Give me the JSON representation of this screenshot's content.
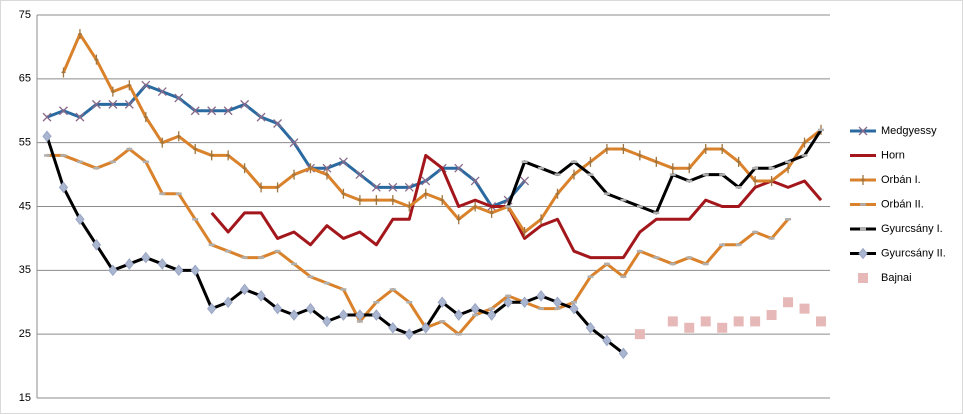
{
  "chart_data": {
    "type": "line",
    "categories": [
      null,
      null,
      null,
      null,
      null,
      null,
      null,
      null,
      null,
      null,
      null,
      null,
      null,
      null,
      null,
      null,
      null,
      null,
      null,
      null,
      null,
      null,
      null,
      null,
      null,
      null,
      null,
      null,
      null,
      null,
      null,
      null,
      null,
      null,
      null,
      null,
      null,
      null,
      null,
      null,
      null,
      null,
      null,
      null,
      null,
      null,
      null,
      null
    ],
    "ylim": [
      15,
      75
    ],
    "yticks": [
      15,
      25,
      35,
      45,
      55,
      65,
      75
    ],
    "grid": true,
    "legend": "right",
    "series": [
      {
        "name": "Medgyessy",
        "color": "#2a6aa0",
        "marker": "x",
        "values": [
          59,
          60,
          59,
          61,
          61,
          61,
          64,
          63,
          62,
          60,
          60,
          60,
          61,
          59,
          58,
          55,
          51,
          51,
          52,
          50,
          48,
          48,
          48,
          49,
          51,
          51,
          49,
          45,
          46,
          49,
          null,
          null,
          null,
          null,
          null,
          null,
          null,
          null,
          null,
          null,
          null,
          null,
          null,
          null,
          null,
          null,
          null,
          null
        ]
      },
      {
        "name": "Horn",
        "color": "#a3171c",
        "marker": "none",
        "values": [
          null,
          null,
          null,
          null,
          null,
          null,
          null,
          null,
          null,
          null,
          44,
          41,
          44,
          44,
          40,
          41,
          39,
          42,
          40,
          41,
          39,
          43,
          43,
          53,
          51,
          45,
          46,
          45,
          45,
          40,
          42,
          43,
          38,
          37,
          37,
          37,
          41,
          43,
          43,
          43,
          46,
          45,
          45,
          48,
          49,
          48,
          49,
          46
        ]
      },
      {
        "name": "Orbán I.",
        "color": "#d9822b",
        "marker": "plus",
        "values": [
          null,
          66,
          72,
          68,
          63,
          64,
          59,
          55,
          56,
          54,
          53,
          53,
          51,
          48,
          48,
          50,
          51,
          50,
          47,
          46,
          46,
          46,
          45,
          47,
          46,
          43,
          45,
          44,
          45,
          41,
          43,
          47,
          50,
          52,
          54,
          54,
          53,
          52,
          51,
          51,
          54,
          54,
          52,
          49,
          49,
          51,
          55,
          57
        ]
      },
      {
        "name": "Orbán II.",
        "color": "#d9822b",
        "marker": "dash",
        "values": [
          53,
          53,
          52,
          51,
          52,
          54,
          52,
          47,
          47,
          43,
          39,
          38,
          37,
          37,
          38,
          36,
          34,
          33,
          32,
          27,
          30,
          32,
          30,
          26,
          27,
          25,
          28,
          29,
          31,
          30,
          29,
          29,
          30,
          34,
          36,
          34,
          38,
          37,
          36,
          37,
          36,
          39,
          39,
          41,
          40,
          43,
          null,
          null
        ]
      },
      {
        "name": "Gyurcsány I.",
        "color": "#000000",
        "marker": "dash",
        "values": [
          null,
          null,
          null,
          null,
          null,
          null,
          null,
          null,
          null,
          null,
          null,
          null,
          null,
          null,
          null,
          null,
          null,
          null,
          null,
          null,
          null,
          null,
          null,
          null,
          null,
          null,
          null,
          null,
          45,
          52,
          51,
          50,
          52,
          50,
          47,
          46,
          45,
          44,
          50,
          49,
          50,
          50,
          48,
          51,
          51,
          52,
          53,
          57
        ]
      },
      {
        "name": "Gyurcsány II.",
        "color": "#000000",
        "marker": "diamond",
        "values": [
          56,
          48,
          43,
          39,
          35,
          36,
          37,
          36,
          35,
          35,
          29,
          30,
          32,
          31,
          29,
          28,
          29,
          27,
          28,
          28,
          28,
          26,
          25,
          26,
          30,
          28,
          29,
          28,
          30,
          30,
          31,
          30,
          29,
          26,
          24,
          22,
          null,
          null,
          null,
          null,
          null,
          null,
          null,
          null,
          null,
          null,
          null,
          null
        ]
      },
      {
        "name": "Bajnai",
        "color": "#e6b9b8",
        "marker": "square",
        "values": [
          null,
          null,
          null,
          null,
          null,
          null,
          null,
          null,
          null,
          null,
          null,
          null,
          null,
          null,
          null,
          null,
          null,
          null,
          null,
          null,
          null,
          null,
          null,
          null,
          null,
          null,
          null,
          null,
          null,
          null,
          null,
          null,
          null,
          null,
          null,
          null,
          25,
          null,
          27,
          26,
          27,
          26,
          27,
          27,
          28,
          30,
          29,
          27
        ]
      }
    ]
  }
}
